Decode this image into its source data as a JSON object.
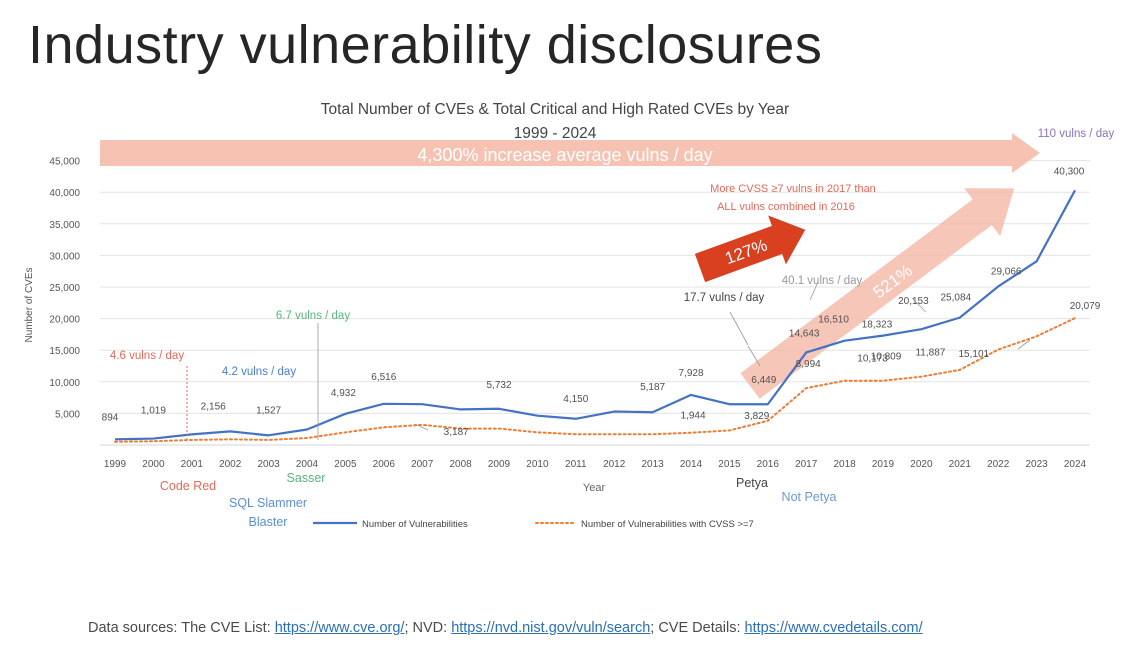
{
  "slide": {
    "title": "Industry vulnerability disclosures",
    "footer": {
      "prefix": "Data sources: The CVE List: ",
      "cve_url": "https://www.cve.org/",
      "nvd_label": "; NVD: ",
      "nvd_url": "https://nvd.nist.gov/vuln/search",
      "details_label": "; CVE Details: ",
      "details_url": "https://www.cvedetails.com/"
    }
  },
  "chart_data": {
    "type": "line",
    "title": "Total Number of CVEs & Total Critical and High Rated CVEs by Year",
    "subtitle": "1999 - 2024",
    "xlabel": "Year",
    "ylabel": "Number of CVEs",
    "ylim": [
      0,
      45000
    ],
    "yticks": [
      5000,
      10000,
      15000,
      20000,
      25000,
      30000,
      35000,
      40000,
      45000
    ],
    "ytick_labels": [
      "5,000",
      "10,000",
      "15,000",
      "20,000",
      "25,000",
      "30,000",
      "35,000",
      "40,000",
      "45,000"
    ],
    "grid": true,
    "legend_position": "bottom",
    "categories": [
      "1999",
      "2000",
      "2001",
      "2002",
      "2003",
      "2004",
      "2005",
      "2006",
      "2007",
      "2008",
      "2009",
      "2010",
      "2011",
      "2012",
      "2013",
      "2014",
      "2015",
      "2016",
      "2017",
      "2018",
      "2019",
      "2020",
      "2021",
      "2022",
      "2023",
      "2024"
    ],
    "series": [
      {
        "name": "Number of Vulnerabilities",
        "color": "#4472c4",
        "style": "solid",
        "values": [
          894,
          1019,
          1677,
          2156,
          1527,
          2451,
          4932,
          6516,
          6454,
          5632,
          5732,
          4639,
          4150,
          5297,
          5187,
          7928,
          6449,
          6449,
          14643,
          16510,
          17306,
          18323,
          20153,
          25084,
          29066,
          40300
        ]
      },
      {
        "name": "Number of Vulnerabilities with CVSS >=7",
        "color": "#ed7d31",
        "style": "dotted",
        "values": [
          500,
          600,
          800,
          900,
          800,
          1100,
          2000,
          2800,
          3187,
          2600,
          2600,
          2000,
          1700,
          1700,
          1700,
          1944,
          2300,
          3829,
          8994,
          10173,
          10173,
          10809,
          11887,
          15101,
          17200,
          20079
        ]
      }
    ],
    "data_labels": [
      {
        "text": "894",
        "series": 0,
        "index": 0
      },
      {
        "text": "1,019",
        "series": 0,
        "index": 1
      },
      {
        "text": "2,156",
        "series": 0,
        "index": 3
      },
      {
        "text": "1,527",
        "series": 0,
        "index": 4
      },
      {
        "text": "4,932",
        "series": 0,
        "index": 6
      },
      {
        "text": "6,516",
        "series": 0,
        "index": 7
      },
      {
        "text": "5,732",
        "series": 0,
        "index": 10
      },
      {
        "text": "4,150",
        "series": 0,
        "index": 12
      },
      {
        "text": "5,187",
        "series": 0,
        "index": 14
      },
      {
        "text": "7,928",
        "series": 0,
        "index": 15
      },
      {
        "text": "6,449",
        "series": 0,
        "index": 17
      },
      {
        "text": "14,643",
        "series": 0,
        "index": 18
      },
      {
        "text": "16,510",
        "series": 0,
        "index": 19
      },
      {
        "text": "18,323",
        "series": 0,
        "index": 20
      },
      {
        "text": "20,153",
        "series": 0,
        "index": 21
      },
      {
        "text": "25,084",
        "series": 0,
        "index": 22
      },
      {
        "text": "29,066",
        "series": 0,
        "index": 23
      },
      {
        "text": "40,300",
        "series": 0,
        "index": 25
      },
      {
        "text": "3,187",
        "series": 1,
        "index": 8
      },
      {
        "text": "1,944",
        "series": 1,
        "index": 15
      },
      {
        "text": "3,829",
        "series": 1,
        "index": 17
      },
      {
        "text": "8,994",
        "series": 1,
        "index": 18
      },
      {
        "text": "10,173",
        "series": 1,
        "index": 19
      },
      {
        "text": "10,809",
        "series": 1,
        "index": 20
      },
      {
        "text": "11,887",
        "series": 1,
        "index": 21
      },
      {
        "text": "15,101",
        "series": 1,
        "index": 22
      },
      {
        "text": "20,079",
        "series": 1,
        "index": 25
      }
    ],
    "annotations": {
      "increase_banner": "4,300% increase average vulns / day",
      "rate_2024": "110 vulns / day",
      "rate_1999": "4.6 vulns / day",
      "rate_2002": "4.2 vulns / day",
      "rate_2004": "6.7 vulns / day",
      "rate_2015": "17.7 vulns / day",
      "rate_2017": "40.1 vulns / day",
      "growth_127": "127%",
      "growth_521": "521%",
      "cvss_note_line1": "More CVSS ≥7 vulns in 2017 than",
      "cvss_note_line2": "ALL vulns combined in 2016"
    },
    "events": [
      {
        "text": "Code Red",
        "year": "2001",
        "color": "#e06a5a"
      },
      {
        "text": "SQL Slammer",
        "year": "2003",
        "color": "#5b8fd0"
      },
      {
        "text": "Blaster",
        "year": "2003",
        "color": "#5b8fd0"
      },
      {
        "text": "Sasser",
        "year": "2004",
        "color": "#5bb380"
      },
      {
        "text": "Petya",
        "year": "2016",
        "color": "#444444"
      },
      {
        "text": "Not Petya",
        "year": "2017",
        "color": "#6b9ad4"
      }
    ],
    "colors": {
      "banner_arrow": "#f4b8a6",
      "growth_arrow": "#d8401f",
      "rate_red": "#e06a5a",
      "rate_blue": "#4a7fc8",
      "rate_green": "#5bb380",
      "rate_gray": "#555555"
    }
  }
}
